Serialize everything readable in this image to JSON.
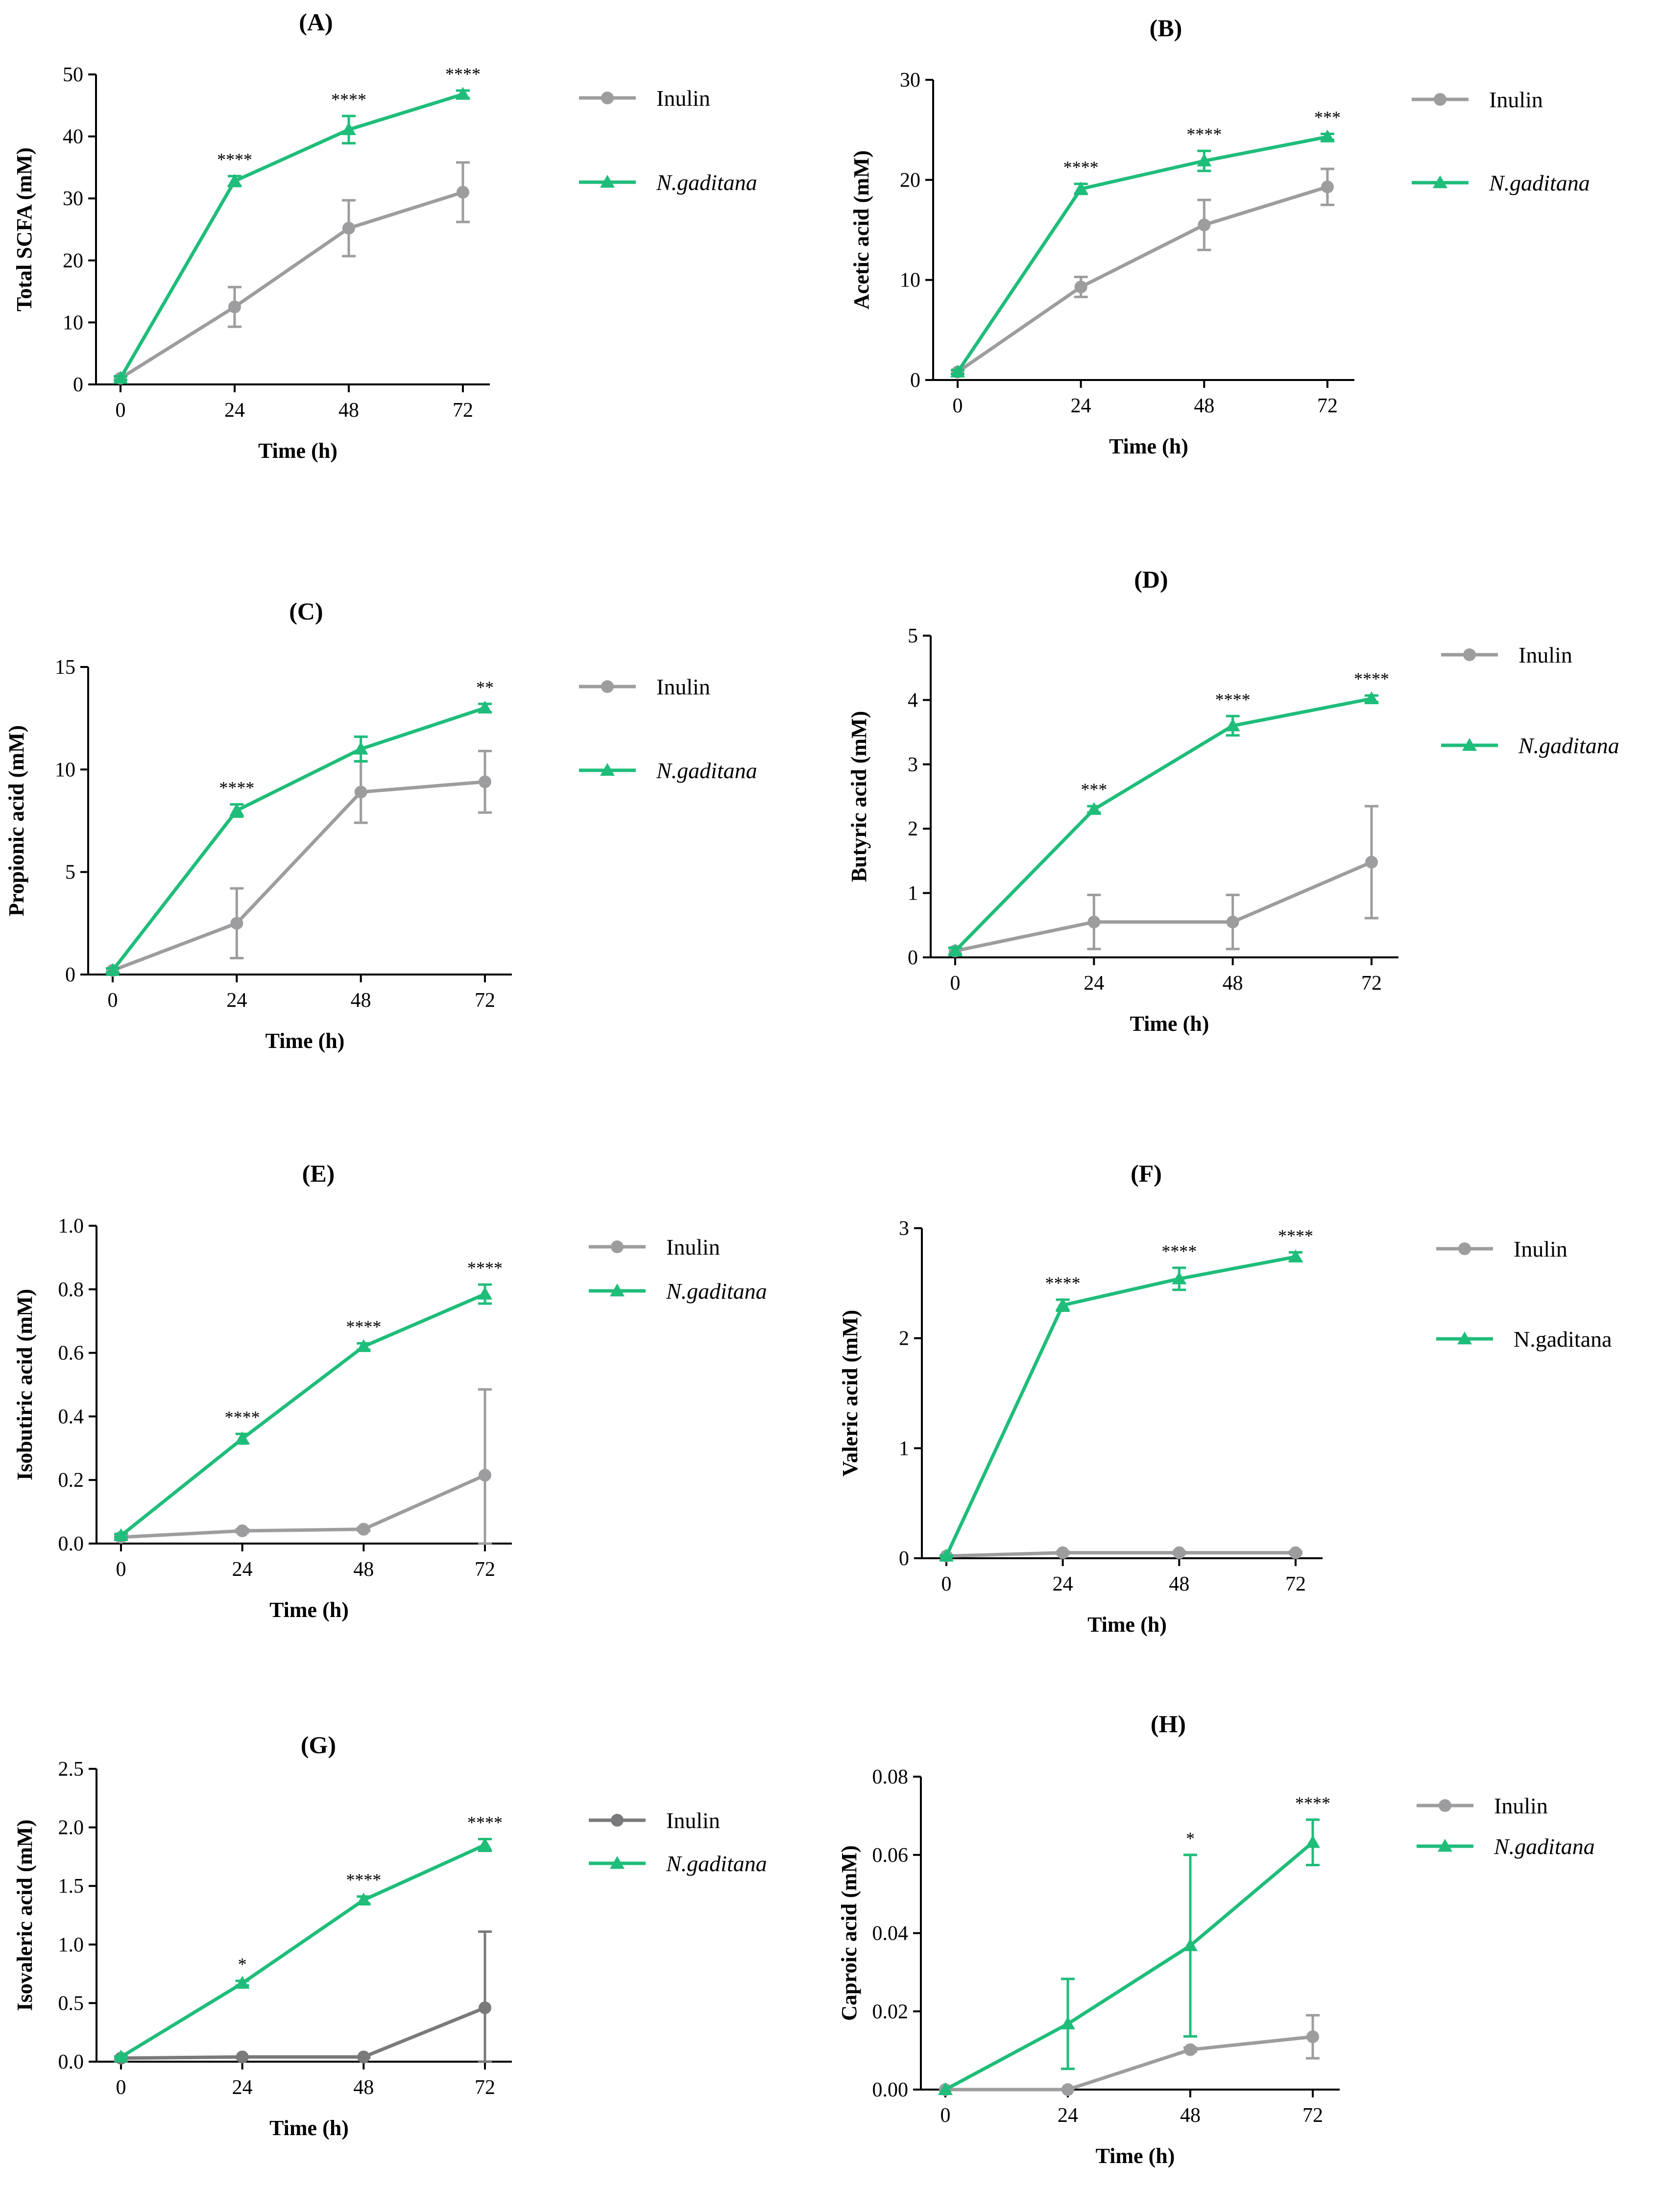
{
  "colors": {
    "inulin": "#9d9d9f",
    "inulin_dark": "#7a7a7c",
    "ngaditana": "#1fbd7a",
    "axis": "#000000"
  },
  "icons": {
    "inulin_marker": "circle",
    "ngaditana_marker": "triangle"
  },
  "chart_data": [
    {
      "type": "line",
      "panel_label": "(A)",
      "title": "(A)",
      "xlabel": "Time (h)",
      "ylabel": "Total SCFA (mM)",
      "x": [
        0,
        24,
        48,
        72
      ],
      "x_ticks": [
        "0",
        "24",
        "48",
        "72"
      ],
      "ylim": [
        0,
        50
      ],
      "y_ticks": [
        "0",
        "10",
        "20",
        "30",
        "40",
        "50"
      ],
      "legend_position": "right",
      "series": [
        {
          "name": "Inulin",
          "italic": false,
          "color_key": "inulin",
          "marker": "circle",
          "values": [
            1.0,
            12.5,
            25.2,
            31.0
          ],
          "errors": [
            0.3,
            3.2,
            4.5,
            4.8
          ]
        },
        {
          "name": "N.gaditana",
          "italic": true,
          "color_key": "ngaditana",
          "marker": "triangle",
          "values": [
            1.0,
            32.8,
            41.1,
            46.8
          ],
          "errors": [
            0.3,
            0.8,
            2.2,
            0.6
          ]
        }
      ],
      "annotations": [
        "",
        "****",
        "****",
        "****"
      ]
    },
    {
      "type": "line",
      "panel_label": "(B)",
      "title": "(B)",
      "xlabel": "Time (h)",
      "ylabel": "Acetic acid (mM)",
      "x": [
        0,
        24,
        48,
        72
      ],
      "x_ticks": [
        "0",
        "24",
        "48",
        "72"
      ],
      "ylim": [
        0,
        30
      ],
      "y_ticks": [
        "0",
        "10",
        "20",
        "30"
      ],
      "legend_position": "right",
      "series": [
        {
          "name": "Inulin",
          "italic": false,
          "color_key": "inulin",
          "marker": "circle",
          "values": [
            0.8,
            9.3,
            15.5,
            19.3
          ],
          "errors": [
            0.2,
            1.0,
            2.5,
            1.8
          ]
        },
        {
          "name": "N.gaditana",
          "italic": true,
          "color_key": "ngaditana",
          "marker": "triangle",
          "values": [
            0.8,
            19.1,
            21.9,
            24.3
          ],
          "errors": [
            0.2,
            0.5,
            1.0,
            0.3
          ]
        }
      ],
      "annotations": [
        "",
        "****",
        "****",
        "***"
      ]
    },
    {
      "type": "line",
      "panel_label": "(C)",
      "title": "(C)",
      "xlabel": "Time (h)",
      "ylabel": "Propionic acid (mM)",
      "x": [
        0,
        24,
        48,
        72
      ],
      "x_ticks": [
        "0",
        "24",
        "48",
        "72"
      ],
      "ylim": [
        0,
        15
      ],
      "y_ticks": [
        "0",
        "5",
        "10",
        "15"
      ],
      "legend_position": "right",
      "series": [
        {
          "name": "Inulin",
          "italic": false,
          "color_key": "inulin",
          "marker": "circle",
          "values": [
            0.2,
            2.5,
            8.9,
            9.4
          ],
          "errors": [
            0.1,
            1.7,
            1.5,
            1.5
          ]
        },
        {
          "name": "N.gaditana",
          "italic": true,
          "color_key": "ngaditana",
          "marker": "triangle",
          "values": [
            0.2,
            8.0,
            11.0,
            13.0
          ],
          "errors": [
            0.1,
            0.3,
            0.6,
            0.2
          ]
        }
      ],
      "annotations": [
        "",
        "****",
        "",
        "**"
      ]
    },
    {
      "type": "line",
      "panel_label": "(D)",
      "title": "(D)",
      "xlabel": "Time (h)",
      "ylabel": "Butyric acid (mM)",
      "x": [
        0,
        24,
        48,
        72
      ],
      "x_ticks": [
        "0",
        "24",
        "48",
        "72"
      ],
      "ylim": [
        0,
        5
      ],
      "y_ticks": [
        "0",
        "1",
        "2",
        "3",
        "4",
        "5"
      ],
      "legend_position": "right",
      "series": [
        {
          "name": "Inulin",
          "italic": false,
          "color_key": "inulin",
          "marker": "circle",
          "values": [
            0.1,
            0.55,
            0.55,
            1.48
          ],
          "errors": [
            0.05,
            0.42,
            0.42,
            0.87
          ]
        },
        {
          "name": "N.gaditana",
          "italic": true,
          "color_key": "ngaditana",
          "marker": "triangle",
          "values": [
            0.1,
            2.3,
            3.6,
            4.02
          ],
          "errors": [
            0.05,
            0.05,
            0.15,
            0.05
          ]
        }
      ],
      "annotations": [
        "",
        "***",
        "****",
        "****"
      ]
    },
    {
      "type": "line",
      "panel_label": "(E)",
      "title": "(E)",
      "xlabel": "Time (h)",
      "ylabel": "Isobutiric acid (mM)",
      "x": [
        0,
        24,
        48,
        72
      ],
      "x_ticks": [
        "0",
        "24",
        "48",
        "72"
      ],
      "ylim": [
        0,
        1.0
      ],
      "y_ticks": [
        "0.0",
        "0.2",
        "0.4",
        "0.6",
        "0.8",
        "1.0"
      ],
      "legend_position": "right",
      "series": [
        {
          "name": "Inulin",
          "italic": false,
          "color_key": "inulin",
          "marker": "circle",
          "values": [
            0.02,
            0.04,
            0.045,
            0.215
          ],
          "errors": [
            0.005,
            0.005,
            0.005,
            0.27
          ]
        },
        {
          "name": "N.gaditana",
          "italic": true,
          "color_key": "ngaditana",
          "marker": "triangle",
          "values": [
            0.025,
            0.33,
            0.62,
            0.785
          ],
          "errors": [
            0.005,
            0.015,
            0.01,
            0.03
          ]
        }
      ],
      "annotations": [
        "",
        "****",
        "****",
        "****"
      ]
    },
    {
      "type": "line",
      "panel_label": "(F)",
      "title": "(F)",
      "xlabel": "Time (h)",
      "ylabel": "Valeric acid (mM)",
      "x": [
        0,
        24,
        48,
        72
      ],
      "x_ticks": [
        "0",
        "24",
        "48",
        "72"
      ],
      "ylim": [
        0,
        3
      ],
      "y_ticks": [
        "0",
        "1",
        "2",
        "3"
      ],
      "legend_position": "right",
      "series": [
        {
          "name": "Inulin",
          "italic": false,
          "color_key": "inulin",
          "marker": "circle",
          "values": [
            0.02,
            0.05,
            0.05,
            0.05
          ],
          "errors": [
            0.005,
            0.01,
            0.01,
            0.01
          ]
        },
        {
          "name": "N.gaditana",
          "italic": false,
          "color_key": "ngaditana",
          "marker": "triangle",
          "values": [
            0.02,
            2.3,
            2.54,
            2.74
          ],
          "errors": [
            0.005,
            0.05,
            0.1,
            0.04
          ]
        }
      ],
      "annotations": [
        "",
        "****",
        "****",
        "****"
      ]
    },
    {
      "type": "line",
      "panel_label": "(G)",
      "title": "(G)",
      "xlabel": "Time (h)",
      "ylabel": "Isovaleric acid (mM)",
      "x": [
        0,
        24,
        48,
        72
      ],
      "x_ticks": [
        "0",
        "24",
        "48",
        "72"
      ],
      "ylim": [
        0,
        2.5
      ],
      "y_ticks": [
        "0.0",
        "0.5",
        "1.0",
        "1.5",
        "2.0",
        "2.5"
      ],
      "legend_position": "right",
      "series": [
        {
          "name": "Inulin",
          "italic": false,
          "color_key": "inulin_dark",
          "marker": "circle",
          "values": [
            0.03,
            0.04,
            0.04,
            0.46
          ],
          "errors": [
            0.005,
            0.005,
            0.005,
            0.65
          ]
        },
        {
          "name": "N.gaditana",
          "italic": true,
          "color_key": "ngaditana",
          "marker": "triangle",
          "values": [
            0.04,
            0.67,
            1.38,
            1.85
          ],
          "errors": [
            0.005,
            0.02,
            0.03,
            0.05
          ]
        }
      ],
      "annotations": [
        "",
        "*",
        "****",
        "****"
      ]
    },
    {
      "type": "line",
      "panel_label": "(H)",
      "title": "(H)",
      "xlabel": "Time (h)",
      "ylabel": "Caproic acid (mM)",
      "x": [
        0,
        24,
        48,
        72
      ],
      "x_ticks": [
        "0",
        "24",
        "48",
        "72"
      ],
      "ylim": [
        0,
        0.08
      ],
      "y_ticks": [
        "0.00",
        "0.02",
        "0.04",
        "0.06",
        "0.08"
      ],
      "legend_position": "right",
      "series": [
        {
          "name": "Inulin",
          "italic": false,
          "color_key": "inulin",
          "marker": "circle",
          "values": [
            0.0,
            0.0,
            0.0102,
            0.0135
          ],
          "errors": [
            0.0,
            0.0,
            0.0005,
            0.0055
          ]
        },
        {
          "name": "N.gaditana",
          "italic": true,
          "color_key": "ngaditana",
          "marker": "triangle",
          "values": [
            0.0,
            0.0168,
            0.0368,
            0.0632
          ],
          "errors": [
            0.0,
            0.0115,
            0.0232,
            0.0058
          ]
        }
      ],
      "annotations": [
        "",
        "",
        "*",
        "****"
      ]
    }
  ]
}
